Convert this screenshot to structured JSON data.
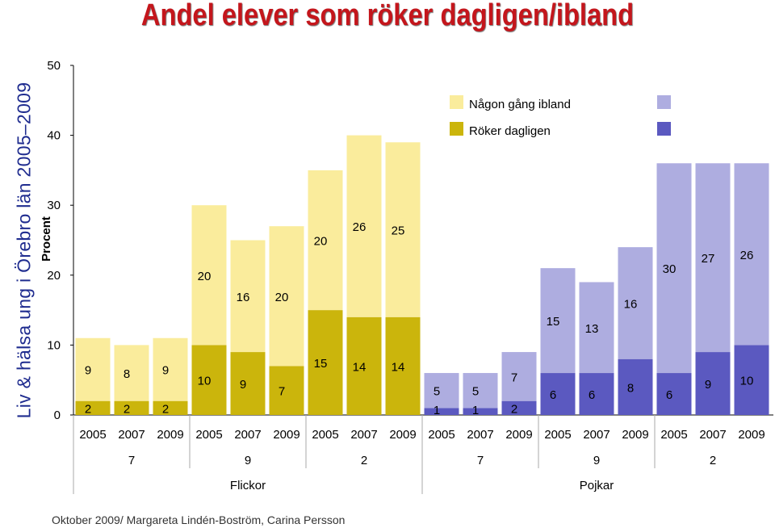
{
  "side_title": "Liv & hälsa ung i Örebro län 2005–2009",
  "footer": "Oktober 2009/ Margareta Lindén-Boström, Carina Persson",
  "chart_data": {
    "type": "bar",
    "stacked": true,
    "title": "Andel elever som röker dagligen/ibland",
    "ylabel": "Procent",
    "ylim": [
      0,
      50
    ],
    "yticks": [
      0,
      10,
      20,
      30,
      40,
      50
    ],
    "grid": false,
    "legend_position": "top-right",
    "legend": [
      {
        "label": "Någon gång ibland",
        "girls_color": "#faec9c",
        "boys_color": "#aeade0"
      },
      {
        "label": "Röker dagligen",
        "girls_color": "#cbb50c",
        "boys_color": "#5b59c0"
      }
    ],
    "colors": {
      "girls_light": "#faec9c",
      "girls_dark": "#cbb50c",
      "boys_light": "#aeade0",
      "boys_dark": "#5b59c0"
    },
    "groups": [
      {
        "gender": "Flickor",
        "grade": "7",
        "years": [
          "2005",
          "2007",
          "2009"
        ],
        "daily": [
          2,
          2,
          2
        ],
        "sometimes": [
          9,
          8,
          9
        ]
      },
      {
        "gender": "Flickor",
        "grade": "9",
        "years": [
          "2005",
          "2007",
          "2009"
        ],
        "daily": [
          10,
          9,
          7
        ],
        "sometimes": [
          20,
          16,
          20
        ]
      },
      {
        "gender": "Flickor",
        "grade": "2",
        "years": [
          "2005",
          "2007",
          "2009"
        ],
        "daily": [
          15,
          14,
          14
        ],
        "sometimes": [
          20,
          26,
          25
        ]
      },
      {
        "gender": "Pojkar",
        "grade": "7",
        "years": [
          "2005",
          "2007",
          "2009"
        ],
        "daily": [
          1,
          1,
          2
        ],
        "sometimes": [
          5,
          5,
          7
        ]
      },
      {
        "gender": "Pojkar",
        "grade": "9",
        "years": [
          "2005",
          "2007",
          "2009"
        ],
        "daily": [
          6,
          6,
          8
        ],
        "sometimes": [
          15,
          13,
          16
        ]
      },
      {
        "gender": "Pojkar",
        "grade": "2",
        "years": [
          "2005",
          "2007",
          "2009"
        ],
        "daily": [
          6,
          9,
          10
        ],
        "sometimes": [
          30,
          27,
          26
        ]
      }
    ],
    "genders": [
      "Flickor",
      "Pojkar"
    ]
  }
}
